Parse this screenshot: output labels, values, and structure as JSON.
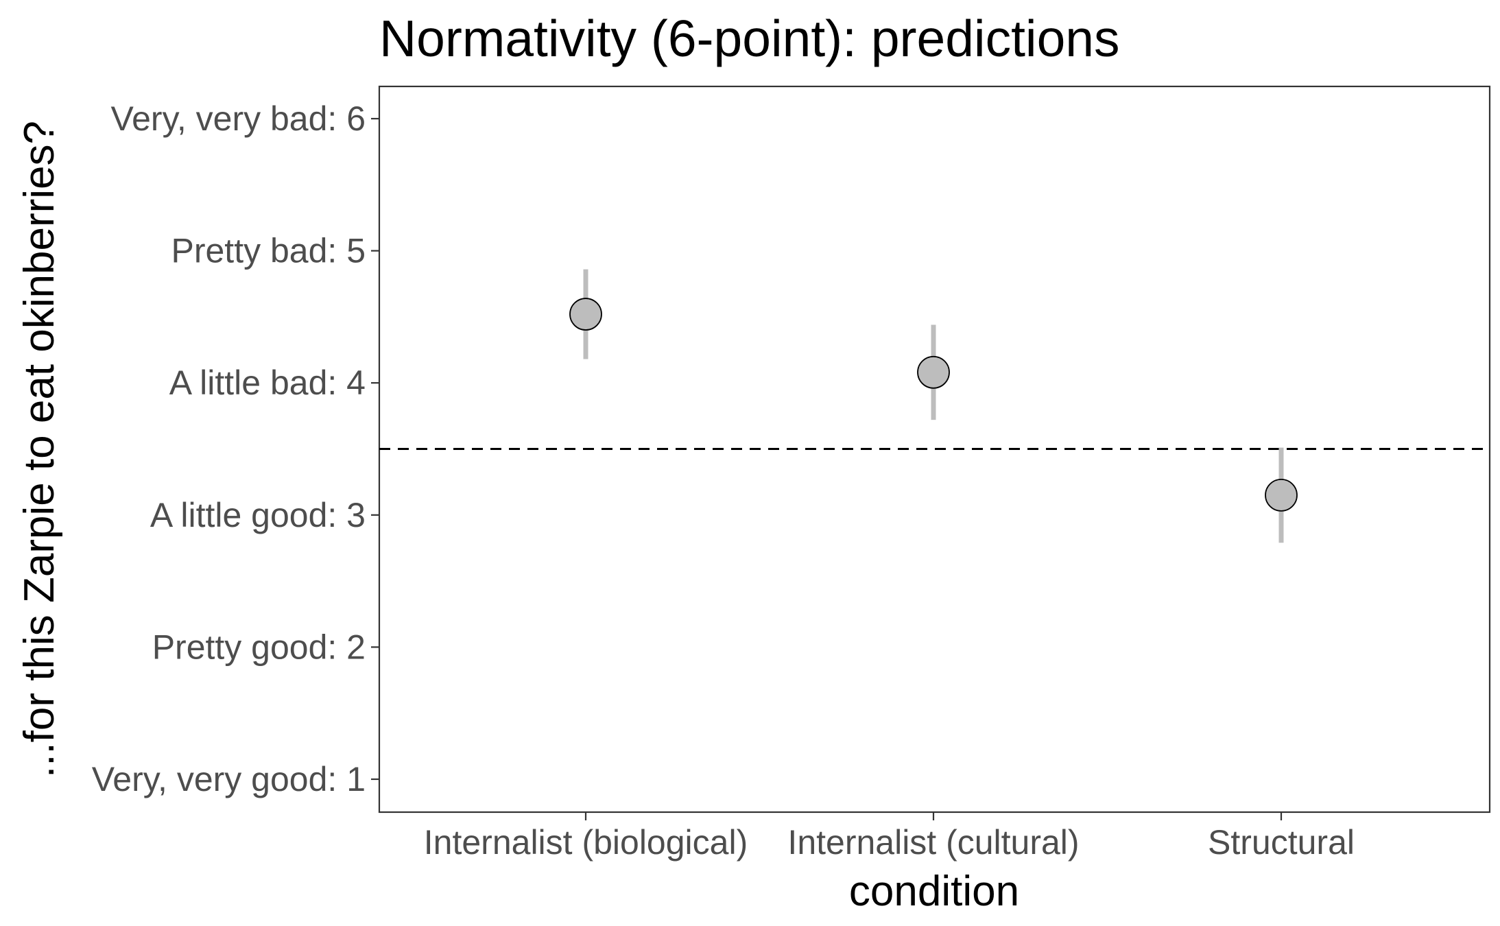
{
  "chart_data": {
    "type": "scatter",
    "title": "Normativity (6-point): predictions",
    "xlabel": "condition",
    "ylabel": "...for this Zarpie to eat okinberries?",
    "categories": [
      "Internalist (biological)",
      "Internalist (cultural)",
      "Structural"
    ],
    "series": [
      {
        "values": [
          4.52,
          4.08,
          3.15
        ],
        "ci_low": [
          4.18,
          3.72,
          2.79
        ],
        "ci_high": [
          4.86,
          4.44,
          3.51
        ]
      }
    ],
    "y_ticks": [
      {
        "value": 1,
        "label": "Very, very good: 1"
      },
      {
        "value": 2,
        "label": "Pretty good: 2"
      },
      {
        "value": 3,
        "label": "A little good: 3"
      },
      {
        "value": 4,
        "label": "A little bad: 4"
      },
      {
        "value": 5,
        "label": "Pretty bad: 5"
      },
      {
        "value": 6,
        "label": "Very, very bad: 6"
      }
    ],
    "ylim": [
      0.75,
      6.25
    ],
    "reference_line": {
      "y": 3.5,
      "style": "dashed"
    },
    "grid": false,
    "legend": "none",
    "colors": {
      "point_fill": "#bdbdbd",
      "point_stroke": "#000000",
      "errorbar": "#bdbdbd",
      "reference_line": "#000000",
      "panel_border": "#333333"
    }
  }
}
